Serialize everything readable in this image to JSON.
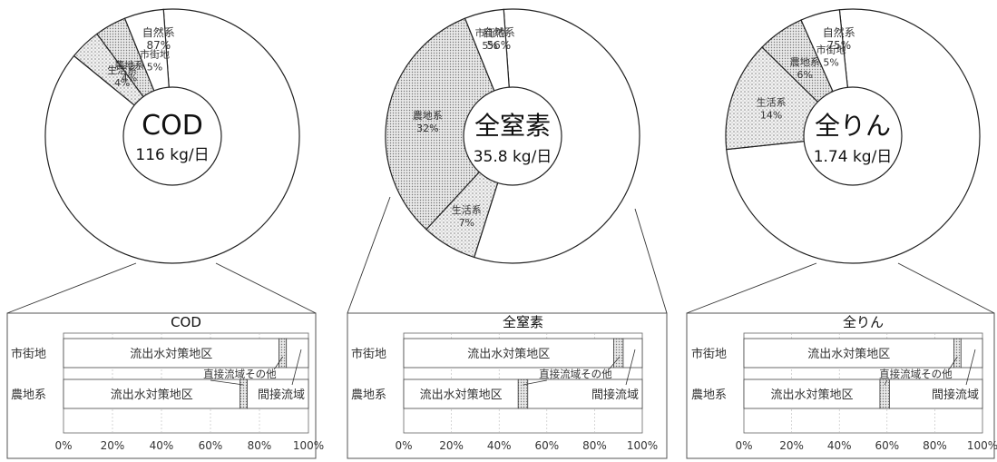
{
  "chart_data": [
    {
      "type": "pie",
      "center_title": "COD",
      "center_value": "116 kg/日",
      "slices": [
        {
          "label": "自然系",
          "pct_label": "87%",
          "value": 87,
          "fill": "#ffffff"
        },
        {
          "label": "生活系",
          "pct_label": "4%",
          "value": 4,
          "fill": "#d6d6d6"
        },
        {
          "label": "農地系",
          "pct_label": "4%",
          "value": 4,
          "fill": "#e4e4e4"
        },
        {
          "label": "市街地",
          "pct_label": "5%",
          "value": 5,
          "fill": "#ffffff"
        }
      ]
    },
    {
      "type": "pie",
      "center_title": "全窒素",
      "center_value": "35.8 kg/日",
      "slices": [
        {
          "label": "自然系",
          "pct_label": "56%",
          "value": 56,
          "fill": "#ffffff"
        },
        {
          "label": "生活系",
          "pct_label": "7%",
          "value": 7,
          "fill": "#d6d6d6"
        },
        {
          "label": "農地系",
          "pct_label": "32%",
          "value": 32,
          "fill": "#e4e4e4"
        },
        {
          "label": "市街地",
          "pct_label": "5%",
          "value": 5,
          "fill": "#ffffff"
        }
      ]
    },
    {
      "type": "pie",
      "center_title": "全りん",
      "center_value": "1.74 kg/日",
      "slices": [
        {
          "label": "自然系",
          "pct_label": "75%",
          "value": 75,
          "fill": "#ffffff"
        },
        {
          "label": "生活系",
          "pct_label": "14%",
          "value": 14,
          "fill": "#d6d6d6"
        },
        {
          "label": "農地系",
          "pct_label": "6%",
          "value": 6,
          "fill": "#e4e4e4"
        },
        {
          "label": "市街地",
          "pct_label": "5%",
          "value": 5,
          "fill": "#ffffff"
        }
      ]
    },
    {
      "type": "bar",
      "stacked": "horizontal-100%",
      "title": "COD",
      "categories": [
        "市街地",
        "農地系"
      ],
      "xticks": [
        "0%",
        "20%",
        "40%",
        "60%",
        "80%",
        "100%"
      ],
      "segment_labels": {
        "policy": "流出水対策地区",
        "indirect": "間接流域",
        "direct_other": "直接流域その他"
      },
      "series": [
        {
          "name": "流出水対策地区",
          "values": [
            88,
            72
          ],
          "fill": "#ffffff"
        },
        {
          "name": "直接流域その他",
          "values": [
            3,
            3
          ],
          "fill": "#d9d9d9"
        },
        {
          "name": "間接流域",
          "values": [
            9,
            25
          ],
          "fill": "#ffffff"
        }
      ]
    },
    {
      "type": "bar",
      "stacked": "horizontal-100%",
      "title": "全窒素",
      "categories": [
        "市街地",
        "農地系"
      ],
      "xticks": [
        "0%",
        "20%",
        "40%",
        "60%",
        "80%",
        "100%"
      ],
      "segment_labels": {
        "policy": "流出水対策地区",
        "indirect": "間接流域",
        "direct_other": "直接流域その他"
      },
      "series": [
        {
          "name": "流出水対策地区",
          "values": [
            88,
            48
          ],
          "fill": "#ffffff"
        },
        {
          "name": "直接流域その他",
          "values": [
            4,
            4
          ],
          "fill": "#d9d9d9"
        },
        {
          "name": "間接流域",
          "values": [
            8,
            48
          ],
          "fill": "#ffffff"
        }
      ]
    },
    {
      "type": "bar",
      "stacked": "horizontal-100%",
      "title": "全りん",
      "categories": [
        "市街地",
        "農地系"
      ],
      "xticks": [
        "0%",
        "20%",
        "40%",
        "60%",
        "80%",
        "100%"
      ],
      "segment_labels": {
        "policy": "流出水対策地区",
        "indirect": "間接流域",
        "direct_other": "直接流域その他"
      },
      "series": [
        {
          "name": "流出水対策地区",
          "values": [
            88,
            57
          ],
          "fill": "#ffffff"
        },
        {
          "name": "直接流域その他",
          "values": [
            3,
            4
          ],
          "fill": "#d9d9d9"
        },
        {
          "name": "間接流域",
          "values": [
            9,
            39
          ],
          "fill": "#ffffff"
        }
      ]
    }
  ]
}
